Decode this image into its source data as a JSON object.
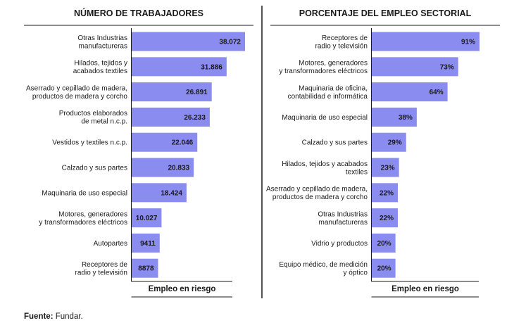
{
  "chart_data": [
    {
      "type": "bar",
      "orientation": "horizontal",
      "title": "NÚMERO DE TRABAJADORES",
      "xlabel": "Empleo en riesgo",
      "xlim": [
        0,
        38072
      ],
      "categories": [
        [
          "Otras Industrias",
          "manufactureras"
        ],
        [
          "Hilados, tejidos y",
          "acabados textiles"
        ],
        [
          "Aserrado y cepillado de madera,",
          "productos de madera y corcho"
        ],
        [
          "Productos elaborados",
          "de metal n.c.p."
        ],
        [
          "Vestidos y textiles n.c.p."
        ],
        [
          "Calzado y sus partes"
        ],
        [
          "Maquinaria de uso especial"
        ],
        [
          "Motores, generadores",
          "y transformadores eléctricos"
        ],
        [
          "Autopartes"
        ],
        [
          "Receptores de",
          "radio y televisión"
        ]
      ],
      "values": [
        38072,
        31886,
        26891,
        26233,
        22046,
        20833,
        18424,
        10027,
        9411,
        8878
      ],
      "value_labels": [
        "38.072",
        "31.886",
        "26.891",
        "26.233",
        "22.046",
        "20.833",
        "18.424",
        "10.027",
        "9411",
        "8878"
      ]
    },
    {
      "type": "bar",
      "orientation": "horizontal",
      "title": "PORCENTAJE DEL EMPLEO SECTORIAL",
      "xlabel": "Empleo en riesgo",
      "xlim": [
        0,
        91
      ],
      "categories": [
        [
          "Receptores de",
          "radio y televisión"
        ],
        [
          "Motores, generadores",
          "y transformadores eléctricos"
        ],
        [
          "Maquinaria  de oficina,",
          "contabilidad e informática"
        ],
        [
          "Maquinaria de uso especial"
        ],
        [
          "Calzado y sus partes"
        ],
        [
          "Hilados, tejidos y acabados",
          "textiles"
        ],
        [
          "Aserrado y cepillado de madera,",
          "productos de madera y corcho"
        ],
        [
          "Otras Industrias",
          "manufactureras"
        ],
        [
          "Vidrio y productos"
        ],
        [
          "Equipo médico, de medición",
          "y óptico"
        ]
      ],
      "values": [
        91,
        73,
        64,
        38,
        29,
        23,
        22,
        22,
        20,
        20
      ],
      "value_labels": [
        "91%",
        "73%",
        "64%",
        "38%",
        "29%",
        "23%",
        "22%",
        "22%",
        "20%",
        "20%"
      ]
    }
  ],
  "colors": {
    "bar": "#8a8cf0",
    "text": "#1a1a1a",
    "rule": "#1a1a1a"
  },
  "footer": {
    "source_label": "Fuente:",
    "source_text": " Fundar."
  }
}
